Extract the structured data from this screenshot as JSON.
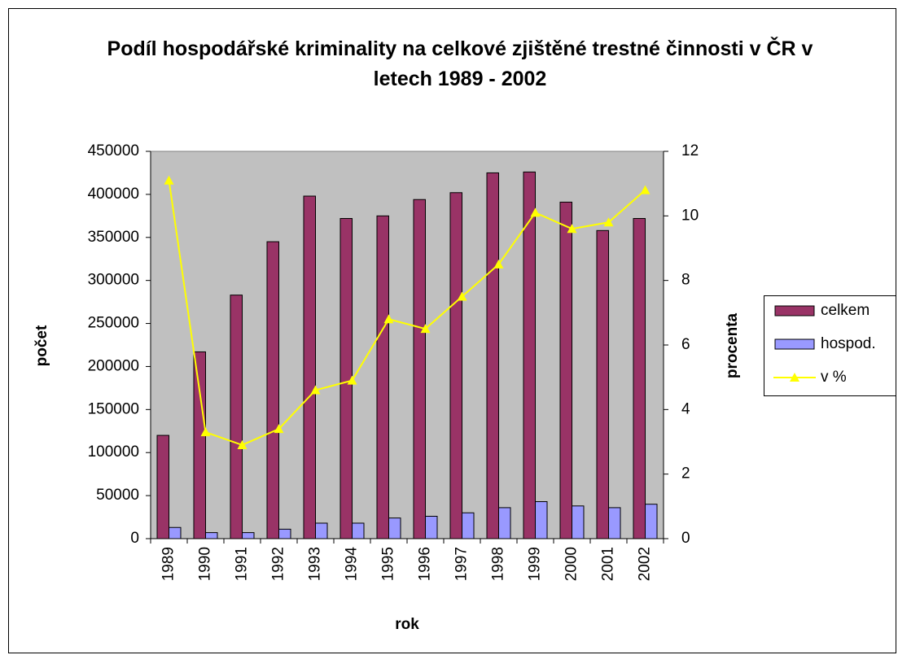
{
  "chart_data": {
    "type": "bar",
    "title": "Podíl hospodářské kriminality na celkové zjištěné trestné činnosti v ČR v letech 1989 - 2002",
    "x_label": "rok",
    "y_label": "počet",
    "y2_label": "procenta",
    "categories": [
      "1989",
      "1990",
      "1991",
      "1992",
      "1993",
      "1994",
      "1995",
      "1996",
      "1997",
      "1998",
      "1999",
      "2000",
      "2001",
      "2002"
    ],
    "series": [
      {
        "name": "celkem",
        "color": "#993366",
        "values": [
          120000,
          217000,
          283000,
          345000,
          398000,
          372000,
          375000,
          394000,
          402000,
          425000,
          426000,
          391000,
          358000,
          372000
        ]
      },
      {
        "name": "hospod.",
        "color": "#9999ff",
        "values": [
          13000,
          7000,
          7000,
          11000,
          18000,
          18000,
          24000,
          26000,
          30000,
          36000,
          43000,
          38000,
          36000,
          40000
        ]
      },
      {
        "name": "v %",
        "color": "#ffff00",
        "type": "line",
        "axis": "y2",
        "values": [
          11.1,
          3.3,
          2.9,
          3.4,
          4.6,
          4.9,
          6.8,
          6.5,
          7.5,
          8.5,
          10.1,
          9.6,
          9.8,
          10.8
        ]
      }
    ],
    "ylim": [
      0,
      450000
    ],
    "yticks": [
      0,
      50000,
      100000,
      150000,
      200000,
      250000,
      300000,
      350000,
      400000,
      450000
    ],
    "y2lim": [
      0,
      12
    ],
    "y2ticks": [
      0,
      2,
      4,
      6,
      8,
      10,
      12
    ],
    "plot_background": "#c0c0c0",
    "legend": "right"
  }
}
